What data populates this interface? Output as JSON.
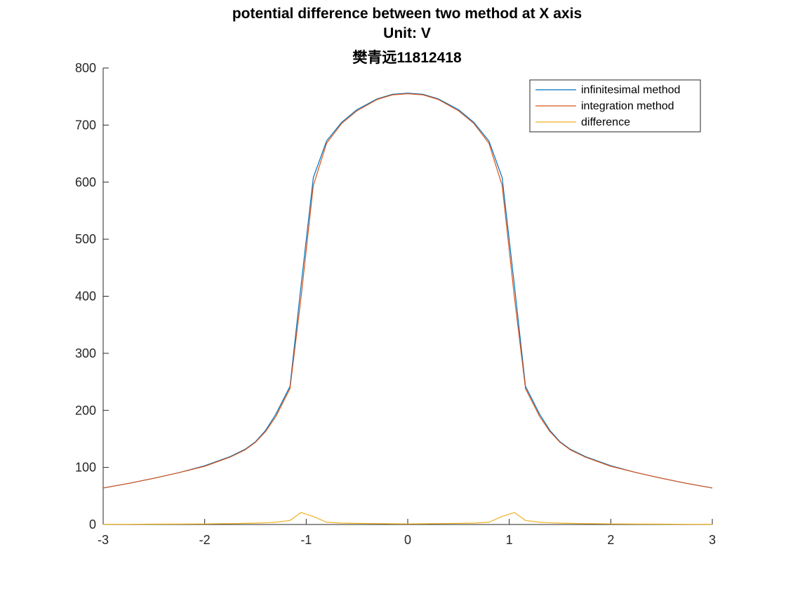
{
  "chart_data": {
    "type": "line",
    "title": [
      "potential difference between two method at X axis",
      "Unit: V",
      "樊青远11812418"
    ],
    "xlabel": "",
    "ylabel": "",
    "xlim": [
      -3,
      3
    ],
    "ylim": [
      0,
      800
    ],
    "xticks": [
      "-3",
      "-2",
      "-1",
      "0",
      "1",
      "2",
      "3"
    ],
    "yticks": [
      "0",
      "100",
      "200",
      "300",
      "400",
      "500",
      "600",
      "700",
      "800"
    ],
    "grid": false,
    "legend_position": "top-right",
    "x": [
      -3.0,
      -2.75,
      -2.5,
      -2.25,
      -2.0,
      -1.75,
      -1.6,
      -1.5,
      -1.4,
      -1.3,
      -1.16,
      -1.05,
      -0.93,
      -0.8,
      -0.65,
      -0.5,
      -0.3,
      -0.15,
      0.0,
      0.15,
      0.3,
      0.5,
      0.65,
      0.8,
      0.93,
      1.05,
      1.16,
      1.3,
      1.4,
      1.5,
      1.6,
      1.75,
      2.0,
      2.25,
      2.5,
      2.75,
      3.0
    ],
    "series": [
      {
        "name": "infinitesimal method",
        "color": "#0072BD",
        "values": [
          64,
          72,
          81,
          91,
          103,
          119,
          132,
          145,
          165,
          193,
          242,
          420,
          608,
          672,
          705,
          727,
          746,
          754,
          756,
          754,
          746,
          727,
          705,
          672,
          608,
          420,
          242,
          193,
          165,
          145,
          132,
          119,
          103,
          91,
          81,
          72,
          64
        ]
      },
      {
        "name": "integration method",
        "color": "#D95319",
        "values": [
          64,
          72,
          81,
          91,
          102,
          118,
          131,
          144,
          163,
          189,
          238,
          399,
          594,
          668,
          703,
          725,
          745,
          753,
          755,
          753,
          745,
          725,
          703,
          668,
          594,
          399,
          238,
          189,
          163,
          144,
          131,
          118,
          102,
          91,
          81,
          72,
          64
        ]
      },
      {
        "name": "difference",
        "color": "#EDB120",
        "values": [
          0.3,
          0.4,
          0.6,
          0.8,
          1,
          1.5,
          2,
          2.5,
          3,
          4,
          7,
          21,
          14,
          4,
          2.5,
          2,
          1.5,
          1.2,
          1,
          1.2,
          1.5,
          2,
          2.5,
          4,
          14,
          21,
          7,
          4,
          3,
          2.5,
          2,
          1.5,
          1,
          0.8,
          0.6,
          0.4,
          0.3
        ]
      }
    ]
  }
}
